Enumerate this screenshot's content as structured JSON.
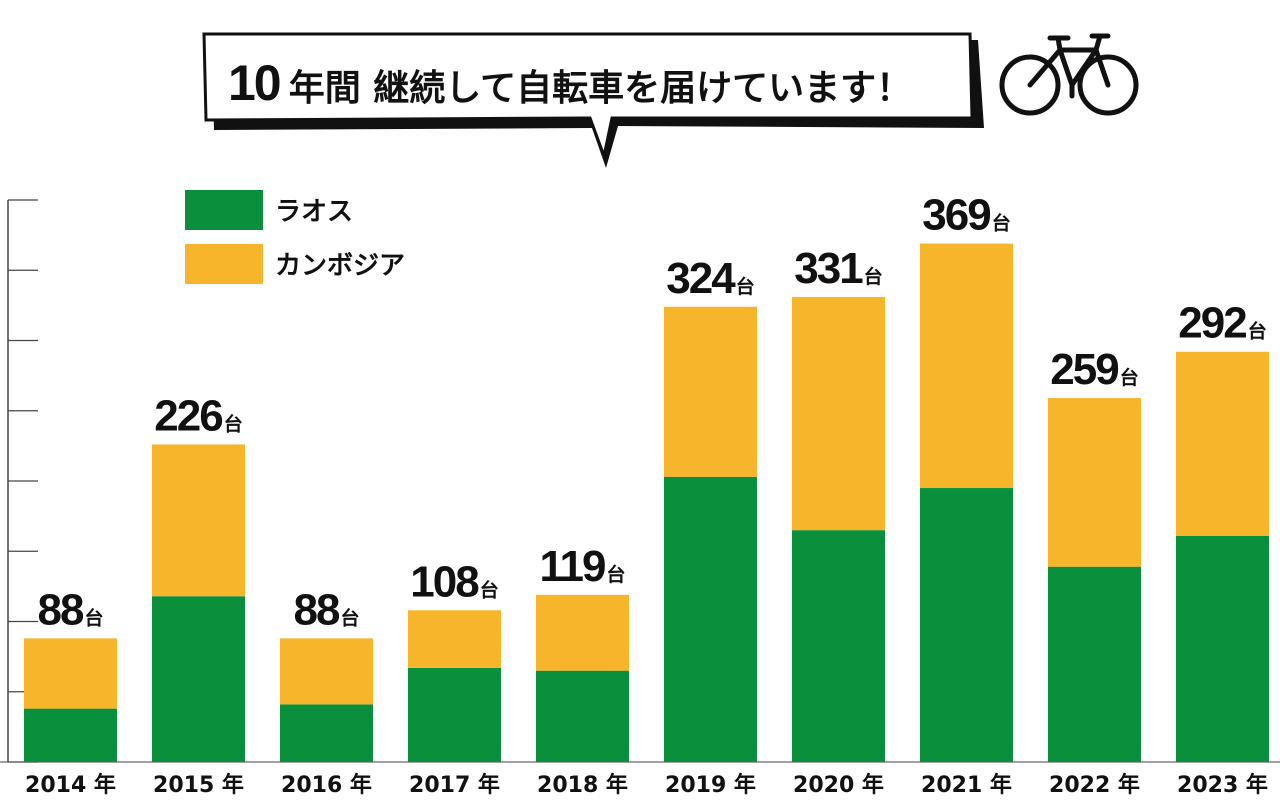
{
  "title": {
    "number": "10",
    "text": "年間 継続して自転車を届けています！"
  },
  "colors": {
    "laos": "#0a903c",
    "cambodia": "#f7b52c",
    "text": "#111111",
    "axis": "#444444"
  },
  "icons": [
    "bicycle-icon"
  ],
  "chart_data": {
    "type": "bar",
    "stacked": true,
    "categories": [
      "2014 年",
      "2015 年",
      "2016 年",
      "2017 年",
      "2018 年",
      "2019 年",
      "2020 年",
      "2021 年",
      "2022 年",
      "2023 年"
    ],
    "series": [
      {
        "name": "ラオス",
        "color": "#0a903c",
        "values": [
          38,
          118,
          41,
          67,
          65,
          203,
          165,
          195,
          139,
          161
        ]
      },
      {
        "name": "カンボジア",
        "color": "#f7b52c",
        "values": [
          50,
          108,
          47,
          41,
          54,
          121,
          166,
          174,
          120,
          131
        ]
      }
    ],
    "totals": [
      "88",
      "226",
      "88",
      "108",
      "119",
      "324",
      "331",
      "369",
      "259",
      "292"
    ],
    "total_unit": "台",
    "ylim": [
      0,
      400
    ],
    "legend_position": "top-left",
    "grid": false
  }
}
